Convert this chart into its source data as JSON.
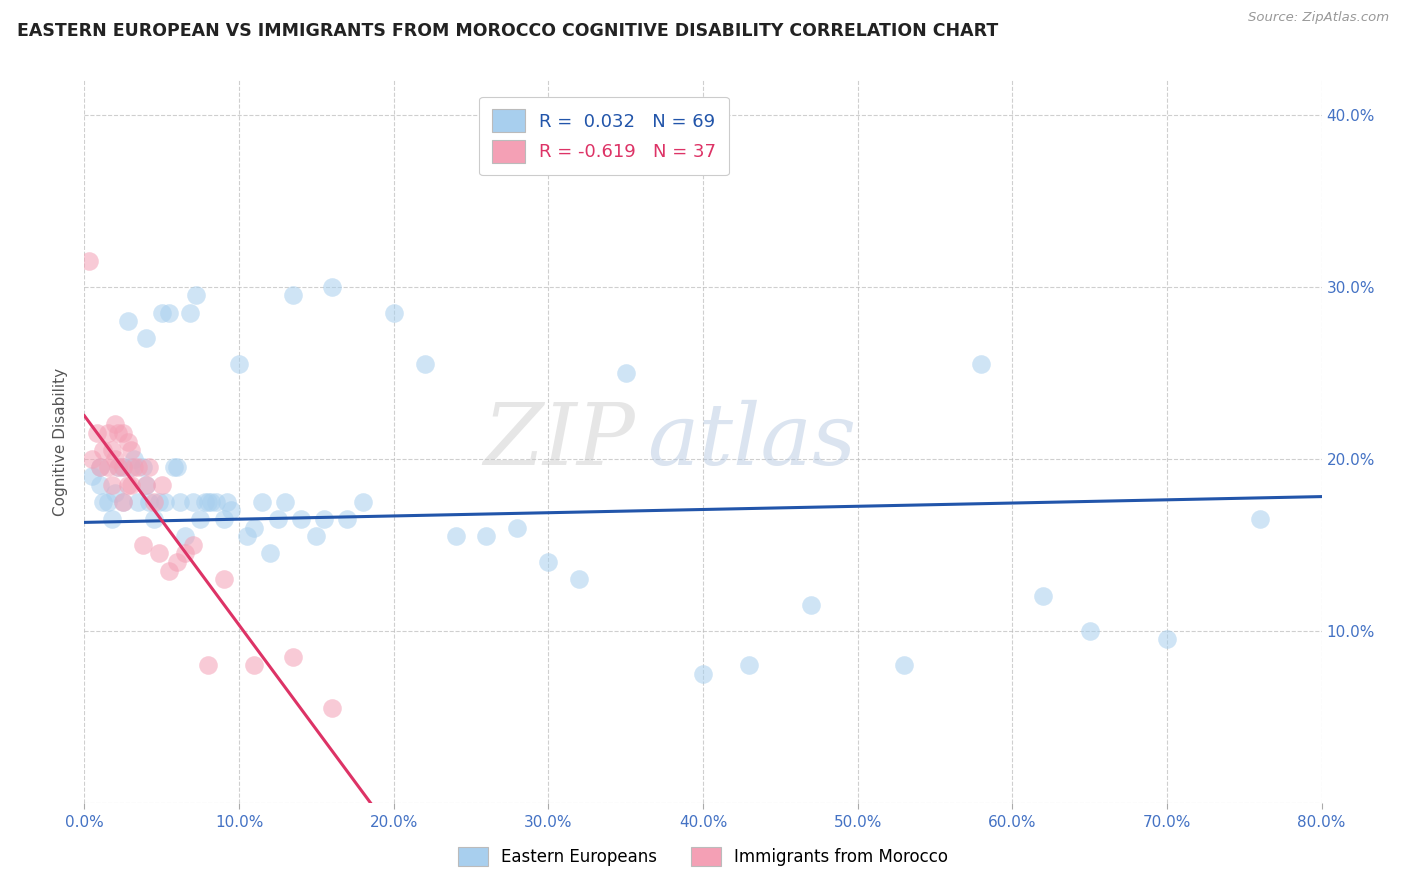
{
  "title": "EASTERN EUROPEAN VS IMMIGRANTS FROM MOROCCO COGNITIVE DISABILITY CORRELATION CHART",
  "source": "Source: ZipAtlas.com",
  "ylabel": "Cognitive Disability",
  "xlim": [
    0.0,
    0.8
  ],
  "ylim": [
    0.0,
    0.42
  ],
  "xticks": [
    0.0,
    0.1,
    0.2,
    0.3,
    0.4,
    0.5,
    0.6,
    0.7,
    0.8
  ],
  "yticks": [
    0.0,
    0.1,
    0.2,
    0.3,
    0.4
  ],
  "xtick_labels": [
    "0.0%",
    "10.0%",
    "20.0%",
    "30.0%",
    "40.0%",
    "50.0%",
    "60.0%",
    "70.0%",
    "80.0%"
  ],
  "ytick_labels": [
    "",
    "10.0%",
    "20.0%",
    "30.0%",
    "40.0%"
  ],
  "blue_R": 0.032,
  "blue_N": 69,
  "pink_R": -0.619,
  "pink_N": 37,
  "blue_color": "#A8CFEE",
  "pink_color": "#F4A0B5",
  "blue_line_color": "#2255AA",
  "pink_line_color": "#DD3366",
  "watermark_zip": "ZIP",
  "watermark_atlas": "atlas",
  "blue_scatter_x": [
    0.005,
    0.01,
    0.01,
    0.012,
    0.015,
    0.018,
    0.02,
    0.022,
    0.025,
    0.025,
    0.028,
    0.03,
    0.032,
    0.035,
    0.038,
    0.04,
    0.04,
    0.042,
    0.045,
    0.048,
    0.05,
    0.052,
    0.055,
    0.058,
    0.06,
    0.062,
    0.065,
    0.068,
    0.07,
    0.072,
    0.075,
    0.078,
    0.08,
    0.082,
    0.085,
    0.09,
    0.092,
    0.095,
    0.1,
    0.105,
    0.11,
    0.115,
    0.12,
    0.125,
    0.13,
    0.135,
    0.14,
    0.15,
    0.155,
    0.16,
    0.17,
    0.18,
    0.2,
    0.22,
    0.24,
    0.26,
    0.28,
    0.3,
    0.32,
    0.35,
    0.4,
    0.43,
    0.47,
    0.53,
    0.58,
    0.62,
    0.65,
    0.7,
    0.76
  ],
  "blue_scatter_y": [
    0.19,
    0.185,
    0.195,
    0.175,
    0.175,
    0.165,
    0.18,
    0.195,
    0.175,
    0.195,
    0.28,
    0.195,
    0.2,
    0.175,
    0.195,
    0.185,
    0.27,
    0.175,
    0.165,
    0.175,
    0.285,
    0.175,
    0.285,
    0.195,
    0.195,
    0.175,
    0.155,
    0.285,
    0.175,
    0.295,
    0.165,
    0.175,
    0.175,
    0.175,
    0.175,
    0.165,
    0.175,
    0.17,
    0.255,
    0.155,
    0.16,
    0.175,
    0.145,
    0.165,
    0.175,
    0.295,
    0.165,
    0.155,
    0.165,
    0.3,
    0.165,
    0.175,
    0.285,
    0.255,
    0.155,
    0.155,
    0.16,
    0.14,
    0.13,
    0.25,
    0.075,
    0.08,
    0.115,
    0.08,
    0.255,
    0.12,
    0.1,
    0.095,
    0.165
  ],
  "pink_scatter_x": [
    0.003,
    0.005,
    0.008,
    0.01,
    0.012,
    0.015,
    0.015,
    0.018,
    0.018,
    0.02,
    0.02,
    0.022,
    0.022,
    0.025,
    0.025,
    0.025,
    0.028,
    0.028,
    0.03,
    0.03,
    0.032,
    0.035,
    0.038,
    0.04,
    0.042,
    0.045,
    0.048,
    0.05,
    0.055,
    0.06,
    0.065,
    0.07,
    0.08,
    0.09,
    0.11,
    0.135,
    0.16
  ],
  "pink_scatter_y": [
    0.315,
    0.2,
    0.215,
    0.195,
    0.205,
    0.195,
    0.215,
    0.205,
    0.185,
    0.2,
    0.22,
    0.195,
    0.215,
    0.195,
    0.175,
    0.215,
    0.185,
    0.21,
    0.185,
    0.205,
    0.195,
    0.195,
    0.15,
    0.185,
    0.195,
    0.175,
    0.145,
    0.185,
    0.135,
    0.14,
    0.145,
    0.15,
    0.08,
    0.13,
    0.08,
    0.085,
    0.055
  ],
  "blue_line_x": [
    0.0,
    0.8
  ],
  "blue_line_y": [
    0.163,
    0.178
  ],
  "pink_line_x": [
    0.0,
    0.185
  ],
  "pink_line_y": [
    0.225,
    0.0
  ]
}
